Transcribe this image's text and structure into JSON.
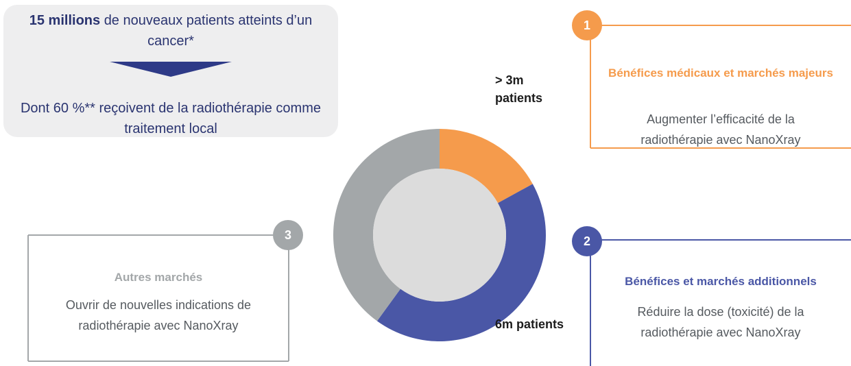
{
  "intro": {
    "highlight": "15 millions",
    "text": "de nouveaux patients atteints d’un cancer*",
    "subtext": "Dont 60 %** reçoivent de la radiothérapie comme traitement local"
  },
  "donut": {
    "type": "pie",
    "segments": [
      {
        "color": "#f59b4c",
        "value": 17
      },
      {
        "color": "#4a57a6",
        "value": 43
      },
      {
        "color": "#a3a7a9",
        "value": 40
      }
    ],
    "labels": [
      "> 3m patients",
      "6m patients"
    ]
  },
  "cards": [
    {
      "number": "1",
      "title": "Bénéfices médicaux et marchés majeurs",
      "text": "Augmenter l’efficacité de la radiothérapie avec NanoXray",
      "color": "#f59b4c"
    },
    {
      "number": "2",
      "title": "Bénéfices et marchés additionnels",
      "text": "Réduire la dose (toxicité) de la radiothérapie avec NanoXray",
      "color": "#4a57a6"
    },
    {
      "number": "3",
      "title": "Autres marchés",
      "text": "Ouvrir de nouvelles indications de radiothérapie avec NanoXray",
      "color": "#a3a7a9"
    }
  ]
}
